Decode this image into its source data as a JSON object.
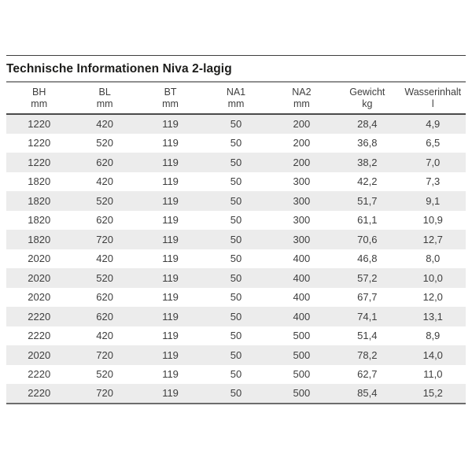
{
  "title": "Technische Informationen Niva 2-lagig",
  "table": {
    "columns": [
      {
        "label": "BH",
        "unit": "mm"
      },
      {
        "label": "BL",
        "unit": "mm"
      },
      {
        "label": "BT",
        "unit": "mm"
      },
      {
        "label": "NA1",
        "unit": "mm"
      },
      {
        "label": "NA2",
        "unit": "mm"
      },
      {
        "label": "Gewicht",
        "unit": "kg"
      },
      {
        "label": "Wasserinhalt",
        "unit": "l"
      }
    ],
    "rows": [
      [
        "1220",
        "420",
        "119",
        "50",
        "200",
        "28,4",
        "4,9"
      ],
      [
        "1220",
        "520",
        "119",
        "50",
        "200",
        "36,8",
        "6,5"
      ],
      [
        "1220",
        "620",
        "119",
        "50",
        "200",
        "38,2",
        "7,0"
      ],
      [
        "1820",
        "420",
        "119",
        "50",
        "300",
        "42,2",
        "7,3"
      ],
      [
        "1820",
        "520",
        "119",
        "50",
        "300",
        "51,7",
        "9,1"
      ],
      [
        "1820",
        "620",
        "119",
        "50",
        "300",
        "61,1",
        "10,9"
      ],
      [
        "1820",
        "720",
        "119",
        "50",
        "300",
        "70,6",
        "12,7"
      ],
      [
        "2020",
        "420",
        "119",
        "50",
        "400",
        "46,8",
        "8,0"
      ],
      [
        "2020",
        "520",
        "119",
        "50",
        "400",
        "57,2",
        "10,0"
      ],
      [
        "2020",
        "620",
        "119",
        "50",
        "400",
        "67,7",
        "12,0"
      ],
      [
        "2220",
        "620",
        "119",
        "50",
        "400",
        "74,1",
        "13,1"
      ],
      [
        "2220",
        "420",
        "119",
        "50",
        "500",
        "51,4",
        "8,9"
      ],
      [
        "2020",
        "720",
        "119",
        "50",
        "500",
        "78,2",
        "14,0"
      ],
      [
        "2220",
        "520",
        "119",
        "50",
        "500",
        "62,7",
        "11,0"
      ],
      [
        "2220",
        "720",
        "119",
        "50",
        "500",
        "85,4",
        "15,2"
      ]
    ],
    "colors": {
      "stripe": "#ececec",
      "text": "#3e3e3e",
      "title_text": "#1d1d1b",
      "rule_top": "#3f3f3f",
      "rule_below_title": "#8f8f8f",
      "rule_below_header": "#4b4b4b",
      "rule_bottom": "#6d6d6d",
      "page_bg": "#ffffff"
    }
  }
}
